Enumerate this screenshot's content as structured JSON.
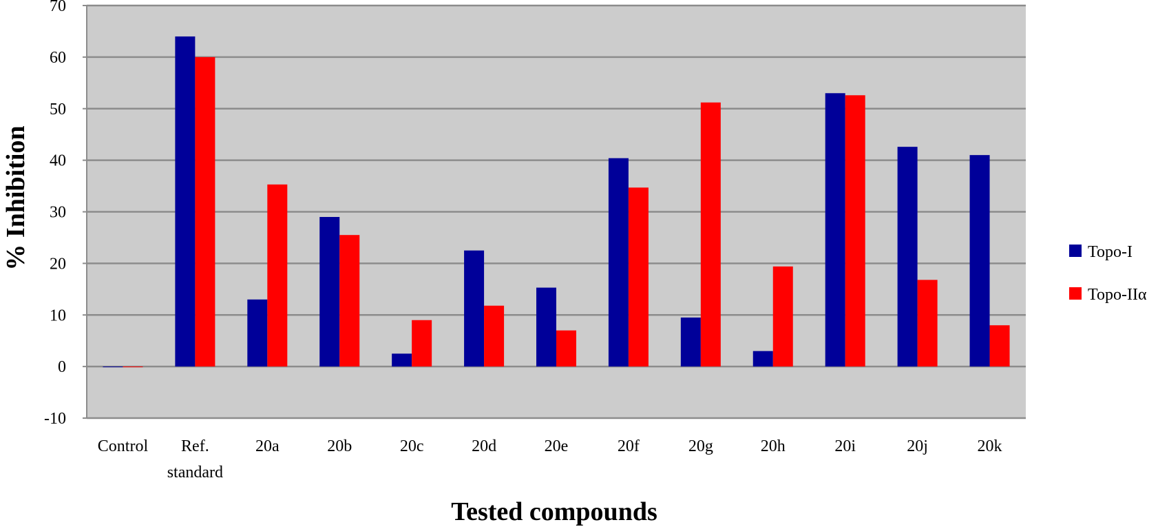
{
  "chart_data": {
    "type": "bar",
    "title": "",
    "xlabel": "Tested compounds",
    "ylabel": "% Inhibition",
    "ylim": [
      -10,
      70
    ],
    "yticks": [
      -10,
      0,
      10,
      20,
      30,
      40,
      50,
      60,
      70
    ],
    "grid": true,
    "legend_position": "right",
    "plot_background": "#cccccc",
    "categories": [
      [
        "Control"
      ],
      [
        "Ref.",
        "standard"
      ],
      [
        "20a"
      ],
      [
        "20b"
      ],
      [
        "20c"
      ],
      [
        "20d"
      ],
      [
        "20e"
      ],
      [
        "20f"
      ],
      [
        "20g"
      ],
      [
        "20h"
      ],
      [
        "20i"
      ],
      [
        "20j"
      ],
      [
        "20k"
      ]
    ],
    "series": [
      {
        "name": "Topo-I",
        "color": "#000099",
        "values": [
          0,
          64,
          13,
          29,
          2.5,
          22.5,
          15.3,
          40.4,
          9.5,
          3,
          53,
          42.6,
          41
        ]
      },
      {
        "name": "Topo-IIα",
        "color": "#ff0000",
        "values": [
          0,
          60,
          35.3,
          25.5,
          9,
          11.8,
          7,
          34.7,
          51.2,
          19.4,
          52.6,
          16.8,
          8
        ]
      }
    ]
  }
}
